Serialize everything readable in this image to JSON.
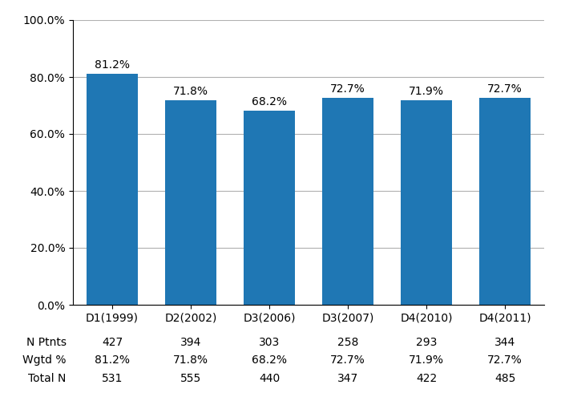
{
  "chart_data": {
    "type": "bar",
    "categories": [
      "D1(1999)",
      "D2(2002)",
      "D3(2006)",
      "D3(2007)",
      "D4(2010)",
      "D4(2011)"
    ],
    "values": [
      81.2,
      71.8,
      68.2,
      72.7,
      71.9,
      72.7
    ],
    "value_labels": [
      "81.2%",
      "71.8%",
      "68.2%",
      "72.7%",
      "71.9%",
      "72.7%"
    ],
    "data_labels": true,
    "ylim": [
      0,
      100
    ],
    "yticks": [
      {
        "value": 0,
        "label": "0.0%"
      },
      {
        "value": 20,
        "label": "20.0%"
      },
      {
        "value": 40,
        "label": "40.0%"
      },
      {
        "value": 60,
        "label": "60.0%"
      },
      {
        "value": 80,
        "label": "80.0%"
      },
      {
        "value": 100,
        "label": "100.0%"
      }
    ],
    "grid": true,
    "table": {
      "row_labels": [
        "N Ptnts",
        "Wgtd %",
        "Total N"
      ],
      "cells": [
        [
          "427",
          "394",
          "303",
          "258",
          "293",
          "344"
        ],
        [
          "81.2%",
          "71.8%",
          "68.2%",
          "72.7%",
          "71.9%",
          "72.7%"
        ],
        [
          "531",
          "555",
          "440",
          "347",
          "422",
          "485"
        ]
      ]
    }
  }
}
